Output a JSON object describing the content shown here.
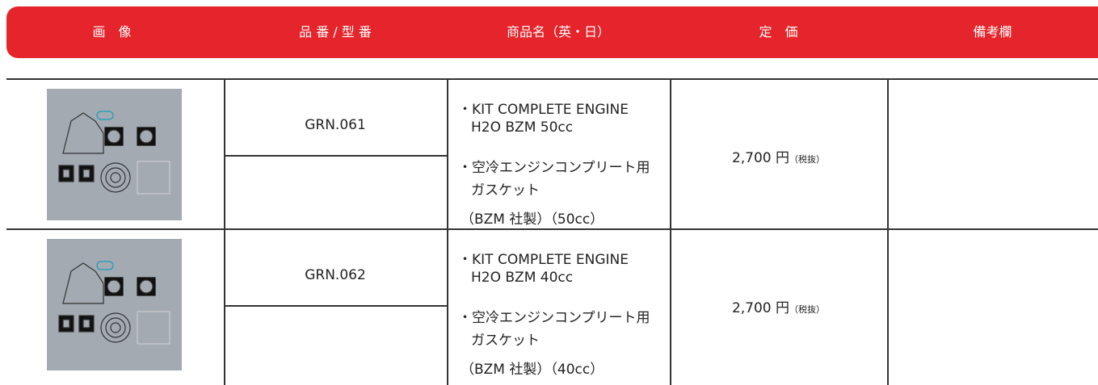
{
  "header": {
    "columns": [
      "画　像",
      "品 番 / 型 番",
      "商品名（英・日）",
      "定　価",
      "備考欄"
    ]
  },
  "table": {
    "rows": [
      {
        "part_no": "GRN.061",
        "name_lines": [
          "・KIT COMPLETE ENGINE",
          "H2O BZM 50cc",
          "・空冷エンジンコンプリート用",
          "ガスケット",
          "（BZM 社製）（50cc）"
        ],
        "price": "2,700 円",
        "price_note": "（税抜）"
      },
      {
        "part_no": "GRN.062",
        "name_lines": [
          "・KIT COMPLETE ENGINE",
          "H2O BZM 40cc",
          "・空冷エンジンコンプリート用",
          "ガスケット",
          "（BZM 社製）（40cc）"
        ],
        "price": "2,700 円",
        "price_note": "（税抜）"
      }
    ]
  }
}
